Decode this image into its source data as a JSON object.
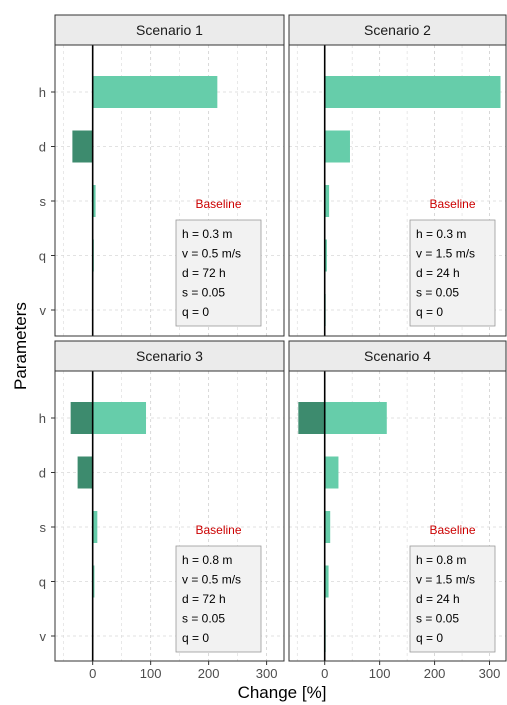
{
  "chart_data": {
    "type": "bar",
    "orientation": "horizontal",
    "xlabel": "Change [%]",
    "ylabel": "Parameters",
    "categories": [
      "h",
      "d",
      "s",
      "q",
      "v"
    ],
    "xlim": [
      -65,
      330
    ],
    "xticks": [
      0,
      100,
      200,
      300
    ],
    "grid": true,
    "colors": {
      "positive": "#66cdaa",
      "negative": "#3d8b6e",
      "zero_line": "#000000",
      "strip_bg": "#ebebeb",
      "box_bg": "#f2f2f2"
    },
    "panels": [
      {
        "title": "Scenario 1",
        "bars": [
          {
            "category": "h",
            "neg": 0,
            "pos": 215
          },
          {
            "category": "d",
            "neg": -35,
            "pos": 0
          },
          {
            "category": "s",
            "neg": 0,
            "pos": 5
          },
          {
            "category": "q",
            "neg": 0,
            "pos": 2
          },
          {
            "category": "v",
            "neg": 0,
            "pos": 0
          }
        ],
        "baseline": {
          "title": "Baseline",
          "lines": [
            "h = 0.3 m",
            "v = 0.5 m/s",
            "d = 72 h",
            "s = 0.05",
            "q = 0"
          ]
        }
      },
      {
        "title": "Scenario 2",
        "bars": [
          {
            "category": "h",
            "neg": 0,
            "pos": 320
          },
          {
            "category": "d",
            "neg": 0,
            "pos": 46
          },
          {
            "category": "s",
            "neg": 0,
            "pos": 8
          },
          {
            "category": "q",
            "neg": 0,
            "pos": 4
          },
          {
            "category": "v",
            "neg": 0,
            "pos": 1
          }
        ],
        "baseline": {
          "title": "Baseline",
          "lines": [
            "h = 0.3 m",
            "v = 1.5 m/s",
            "d = 24 h",
            "s = 0.05",
            "q = 0"
          ]
        }
      },
      {
        "title": "Scenario 3",
        "bars": [
          {
            "category": "h",
            "neg": -38,
            "pos": 92
          },
          {
            "category": "d",
            "neg": -26,
            "pos": 0
          },
          {
            "category": "s",
            "neg": 0,
            "pos": 8
          },
          {
            "category": "q",
            "neg": 0,
            "pos": 3
          },
          {
            "category": "v",
            "neg": 0,
            "pos": 0
          }
        ],
        "baseline": {
          "title": "Baseline",
          "lines": [
            "h = 0.8 m",
            "v = 0.5 m/s",
            "d = 72 h",
            "s = 0.05",
            "q = 0"
          ]
        }
      },
      {
        "title": "Scenario 4",
        "bars": [
          {
            "category": "h",
            "neg": -48,
            "pos": 113
          },
          {
            "category": "d",
            "neg": 0,
            "pos": 25
          },
          {
            "category": "s",
            "neg": 0,
            "pos": 10
          },
          {
            "category": "q",
            "neg": 0,
            "pos": 7
          },
          {
            "category": "v",
            "neg": 0,
            "pos": 1
          }
        ],
        "baseline": {
          "title": "Baseline",
          "lines": [
            "h = 0.8 m",
            "v = 1.5 m/s",
            "d = 24 h",
            "s = 0.05",
            "q = 0"
          ]
        }
      }
    ]
  }
}
